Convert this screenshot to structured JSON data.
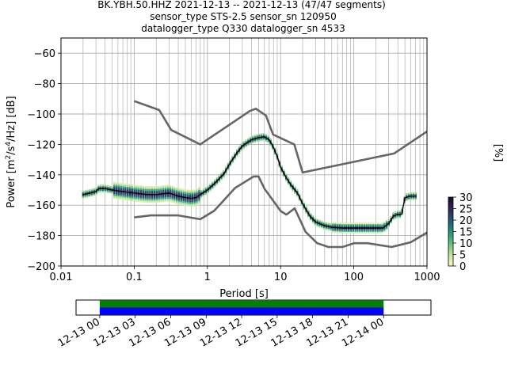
{
  "header": {
    "title_lines": [
      "BK.YBH.50.HHZ   2021-12-13 -- 2021-12-13  (47/47 segments)",
      "sensor_type STS-2.5 sensor_sn 120950",
      "datalogger_type Q330 datalogger_sn 4533"
    ]
  },
  "colors": {
    "noise_model": "#666666",
    "mode_line": "#000000",
    "grid": "#b0b0b0",
    "coverage_green": "#008000",
    "coverage_blue": "#0000ff",
    "colormap": [
      "#f7f8c8",
      "#d8eca8",
      "#9fd88f",
      "#5fc07e",
      "#2fa27c",
      "#1c7d77",
      "#22586f",
      "#2a3366",
      "#2b1a4a",
      "#1a0d2e"
    ]
  },
  "chart_data": [
    {
      "type": "heatmap",
      "name": "probabilistic-power-spectral-density",
      "xlabel": "Period [s]",
      "ylabel": "Power [m²/s⁴/Hz] [dB]",
      "xscale": "log",
      "xlim": [
        0.01,
        1000
      ],
      "ylim": [
        -200,
        -50
      ],
      "xticks": [
        0.01,
        0.1,
        1,
        10,
        100,
        1000
      ],
      "xtick_labels": [
        "0.01",
        "0.1",
        "1",
        "10",
        "100",
        "1000"
      ],
      "yticks": [
        -200,
        -180,
        -160,
        -140,
        -120,
        -100,
        -80,
        -60
      ],
      "ytick_labels": [
        "−200",
        "−180",
        "−160",
        "−140",
        "−120",
        "−100",
        "−80",
        "−60"
      ],
      "grid": true,
      "new_high_noise_model": {
        "period": [
          0.1,
          0.22,
          0.32,
          0.8,
          3.8,
          4.6,
          6.3,
          7.9,
          15.4,
          20,
          354.8,
          1000
        ],
        "power": [
          -91.5,
          -97.4,
          -110.5,
          -120,
          -98,
          -96.5,
          -101,
          -113.5,
          -120,
          -138.5,
          -126,
          -111.5
        ]
      },
      "new_low_noise_model": {
        "period": [
          0.1,
          0.17,
          0.4,
          0.8,
          1.24,
          2.4,
          4.3,
          5,
          6,
          10,
          12,
          15.6,
          21.9,
          31.6,
          45,
          70,
          101,
          154,
          328,
          600,
          1000
        ],
        "power": [
          -168,
          -166.7,
          -166.7,
          -169.2,
          -163.7,
          -148.6,
          -141.1,
          -141.1,
          -149,
          -163.8,
          -166.2,
          -162.1,
          -177.5,
          -185,
          -187.5,
          -187.5,
          -185,
          -185,
          -187.5,
          -184.4,
          -178
        ]
      },
      "mode": {
        "period": [
          0.02,
          0.025,
          0.03,
          0.033,
          0.04,
          0.05,
          0.07,
          0.1,
          0.15,
          0.2,
          0.3,
          0.4,
          0.5,
          0.6,
          0.7,
          0.8,
          1,
          1.3,
          1.7,
          2,
          2.5,
          3,
          4,
          5,
          6,
          7,
          8,
          9,
          10,
          12,
          14,
          17,
          20,
          25,
          30,
          40,
          50,
          70,
          100,
          150,
          200,
          250,
          300,
          350,
          400,
          450,
          500,
          600,
          700
        ],
        "power": [
          -153,
          -152,
          -151,
          -149,
          -149,
          -150,
          -151,
          -152,
          -153,
          -153,
          -152,
          -154,
          -155,
          -155.5,
          -155,
          -153,
          -150,
          -145,
          -139,
          -133,
          -126,
          -121,
          -117,
          -115.5,
          -115,
          -117,
          -122,
          -128,
          -135,
          -142,
          -147,
          -152,
          -159,
          -167,
          -171,
          -173.5,
          -174.5,
          -175,
          -175,
          -175,
          -175,
          -175,
          -172,
          -167,
          -166,
          -166,
          -155,
          -154,
          -154
        ]
      },
      "colorbar": {
        "label": "[%]",
        "min": 0,
        "max": 30,
        "ticks": [
          0,
          5,
          10,
          15,
          20,
          25,
          30
        ],
        "tick_labels": [
          "0",
          "5",
          "10",
          "15",
          "20",
          "25",
          "30"
        ]
      }
    },
    {
      "type": "bar",
      "name": "data-coverage",
      "xlim": [
        "2021-12-12T22:00",
        "2021-12-14T04:00"
      ],
      "coverage_start": "2021-12-13T00:00",
      "coverage_end": "2021-12-14T00:00",
      "series": [
        {
          "color": "green",
          "start": "2021-12-13T00:00",
          "end": "2021-12-14T00:00"
        },
        {
          "color": "blue",
          "start": "2021-12-13T00:00",
          "end": "2021-12-14T00:00"
        }
      ],
      "xticks": [
        "2021-12-13T00:00",
        "2021-12-13T03:00",
        "2021-12-13T06:00",
        "2021-12-13T09:00",
        "2021-12-13T12:00",
        "2021-12-13T15:00",
        "2021-12-13T18:00",
        "2021-12-13T21:00",
        "2021-12-14T00:00"
      ],
      "xtick_labels": [
        "12-13 00",
        "12-13 03",
        "12-13 06",
        "12-13 09",
        "12-13 12",
        "12-13 15",
        "12-13 18",
        "12-13 21",
        "12-14 00"
      ]
    }
  ]
}
